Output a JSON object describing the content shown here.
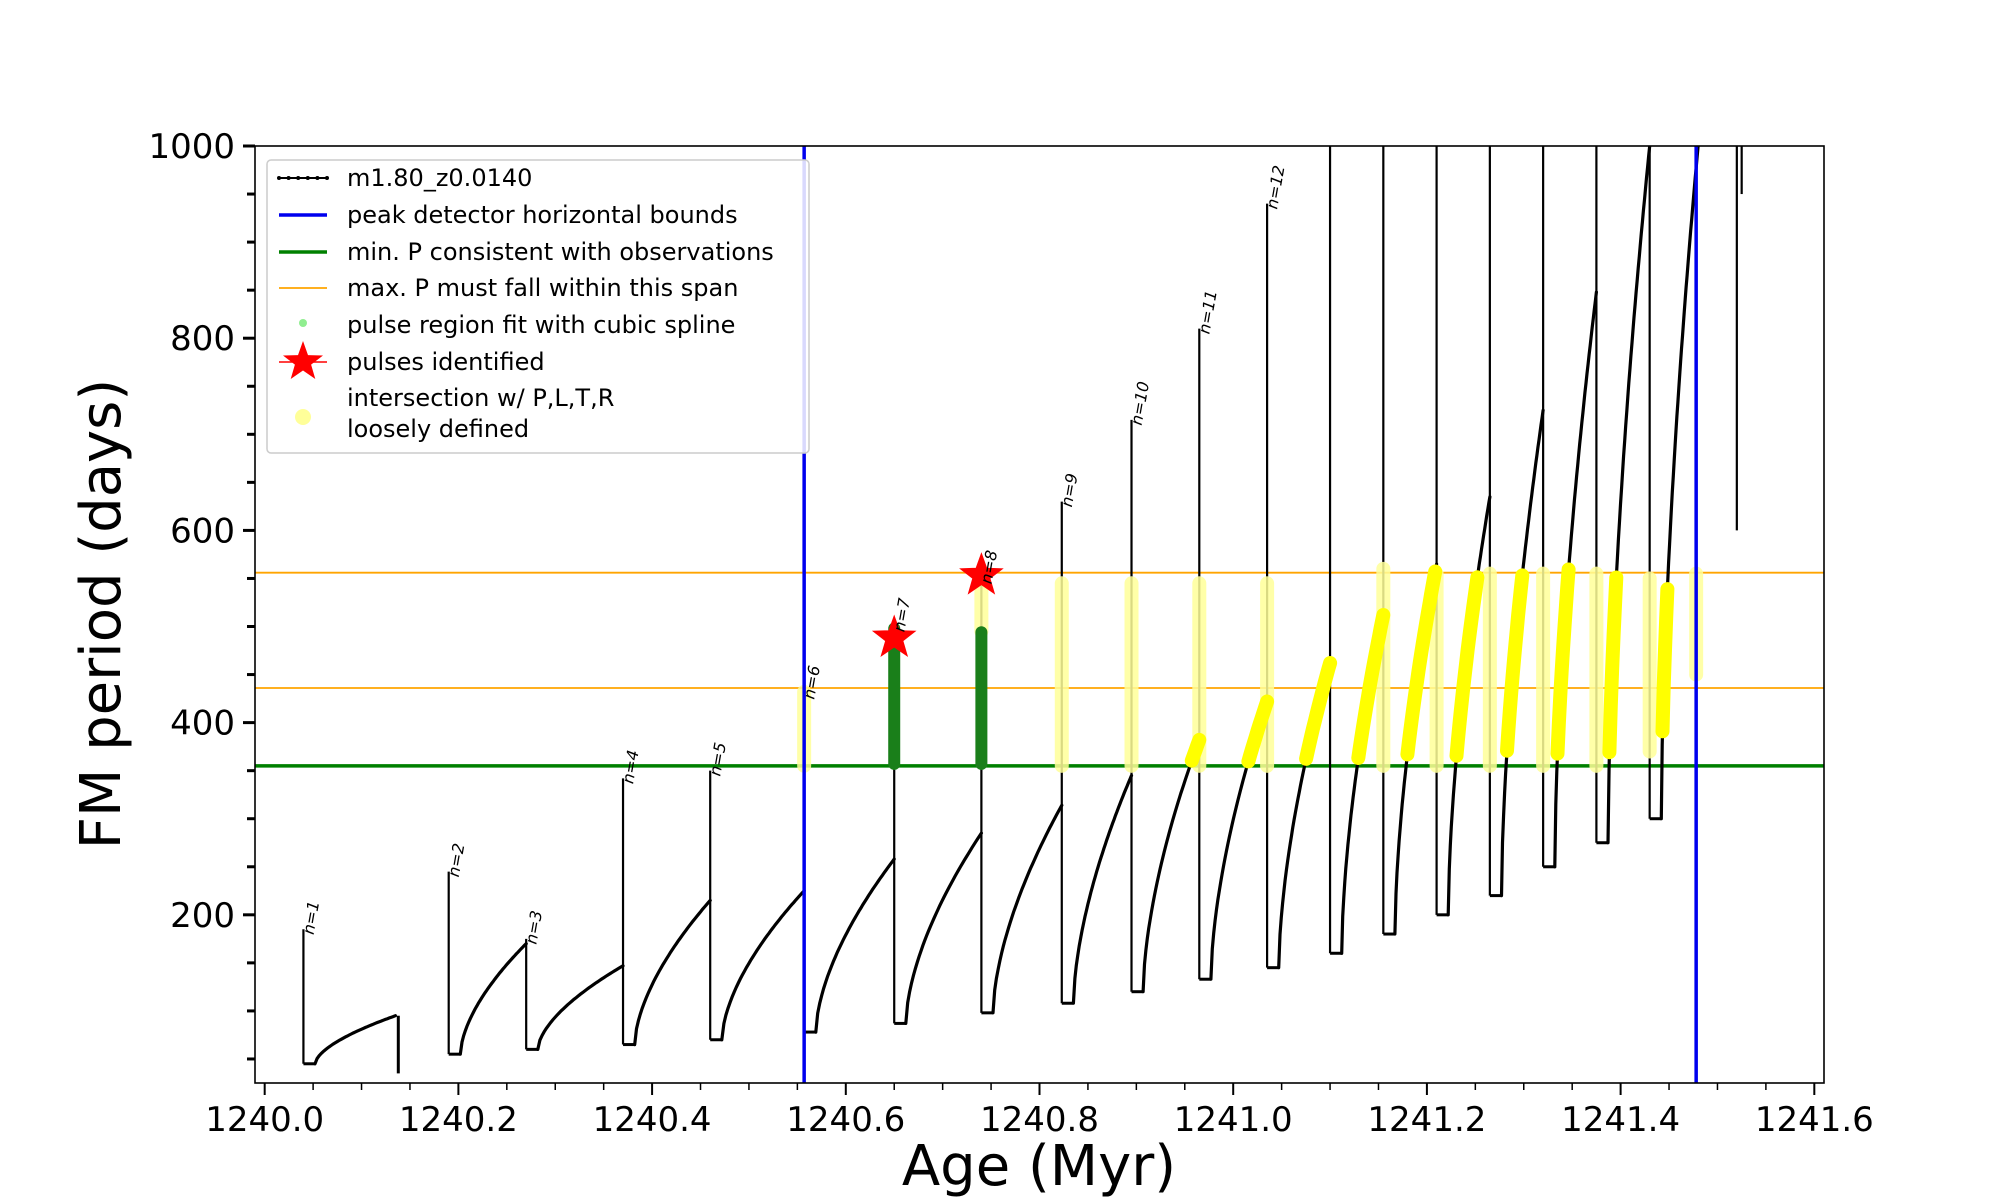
{
  "chart_data": {
    "type": "line",
    "title": "",
    "xlabel": "Age (Myr)",
    "ylabel": "FM period (days)",
    "xlim": [
      1239.99,
      1241.61
    ],
    "ylim": [
      25,
      1000
    ],
    "xticks": [
      1240.0,
      1240.2,
      1240.4,
      1240.6,
      1240.8,
      1241.0,
      1241.2,
      1241.4,
      1241.6
    ],
    "xtick_labels": [
      "1240.0",
      "1240.2",
      "1240.4",
      "1240.6",
      "1240.8",
      "1241.0",
      "1241.2",
      "1241.4",
      "1241.6"
    ],
    "yticks": [
      200,
      400,
      600,
      800,
      1000
    ],
    "ytick_labels": [
      "200",
      "400",
      "600",
      "800",
      "1000"
    ],
    "legend": {
      "position": "top-left",
      "entries": [
        {
          "label": "m1.80_z0.0140",
          "style": "black-line-dots",
          "color": "#000000"
        },
        {
          "label": "peak detector horizontal bounds",
          "style": "line",
          "color": "#0000ee"
        },
        {
          "label": "min. P consistent with observations",
          "style": "line",
          "color": "#008000"
        },
        {
          "label": "max. P must fall within this span",
          "style": "thin-line",
          "color": "#ffa500"
        },
        {
          "label": "pulse region fit with cubic spline",
          "style": "dot",
          "color": "#90ee90"
        },
        {
          "label": "pulses identified",
          "style": "star",
          "color": "#ff0000"
        },
        {
          "label": "intersection w/ P,L,T,R",
          "style": "circle",
          "color": "#ffff99"
        },
        {
          "label": "loosely defined",
          "style": "none",
          "color": ""
        }
      ]
    },
    "reference_lines": {
      "vertical_blue_x": [
        1240.557,
        1241.478
      ],
      "horizontal_green_y": 355,
      "horizontal_orange_y": [
        436,
        556
      ]
    },
    "pulses": [
      {
        "label": "n=1",
        "x": 1240.04,
        "peak": 185,
        "low": 45
      },
      {
        "label": "n=2",
        "x": 1240.19,
        "peak": 245,
        "low": 55
      },
      {
        "label": "n=3",
        "x": 1240.27,
        "peak": 175,
        "low": 60
      },
      {
        "label": "n=4",
        "x": 1240.37,
        "peak": 342,
        "low": 65
      },
      {
        "label": "n=5",
        "x": 1240.46,
        "peak": 350,
        "low": 70
      },
      {
        "label": "n=6",
        "x": 1240.557,
        "peak": 430,
        "low": 78
      },
      {
        "label": "n=7",
        "x": 1240.65,
        "peak": 500,
        "low": 87
      },
      {
        "label": "n=8",
        "x": 1240.74,
        "peak": 550,
        "low": 98
      },
      {
        "label": "n=9",
        "x": 1240.823,
        "peak": 630,
        "low": 108
      },
      {
        "label": "n=10",
        "x": 1240.895,
        "peak": 715,
        "low": 120
      },
      {
        "label": "n=11",
        "x": 1240.965,
        "peak": 810,
        "low": 133
      },
      {
        "label": "n=12",
        "x": 1241.035,
        "peak": 940,
        "low": 145
      }
    ],
    "late_pulses": [
      {
        "x": 1241.1,
        "low": 160
      },
      {
        "x": 1241.155,
        "low": 180
      },
      {
        "x": 1241.21,
        "low": 200
      },
      {
        "x": 1241.265,
        "low": 220
      },
      {
        "x": 1241.32,
        "low": 250
      },
      {
        "x": 1241.375,
        "low": 275
      },
      {
        "x": 1241.43,
        "low": 300
      }
    ],
    "segment_ends": [
      {
        "x": 1240.135,
        "y": 95
      },
      {
        "x": 1240.19,
        "y": 170
      },
      {
        "x": 1240.27,
        "y": 147
      },
      {
        "x": 1240.37,
        "y": 215
      },
      {
        "x": 1240.46,
        "y": 225
      },
      {
        "x": 1240.557,
        "y": 258
      },
      {
        "x": 1240.65,
        "y": 285
      },
      {
        "x": 1240.74,
        "y": 314
      },
      {
        "x": 1240.823,
        "y": 345
      },
      {
        "x": 1240.895,
        "y": 382
      },
      {
        "x": 1240.965,
        "y": 422
      },
      {
        "x": 1241.035,
        "y": 462
      },
      {
        "x": 1241.1,
        "y": 512
      },
      {
        "x": 1241.155,
        "y": 565
      },
      {
        "x": 1241.21,
        "y": 635
      },
      {
        "x": 1241.265,
        "y": 725
      },
      {
        "x": 1241.32,
        "y": 848
      },
      {
        "x": 1241.375,
        "y": 1000
      },
      {
        "x": 1241.43,
        "y": 1000
      }
    ],
    "pulses_identified": [
      {
        "x": 1240.65,
        "y": 488
      },
      {
        "x": 1240.74,
        "y": 553
      }
    ],
    "spline_fit_columns": [
      {
        "x": 1240.65,
        "y_low": 357,
        "y_high": 498
      },
      {
        "x": 1240.74,
        "y_low": 357,
        "y_high": 494
      }
    ],
    "intersection_columns": [
      {
        "x": 1240.557,
        "y_low": 355,
        "y_high": 432
      },
      {
        "x": 1240.74,
        "y_low": 495,
        "y_high": 555
      },
      {
        "x": 1240.823,
        "y_low": 355,
        "y_high": 545
      },
      {
        "x": 1240.895,
        "y_low": 355,
        "y_high": 545
      },
      {
        "x": 1240.965,
        "y_low": 355,
        "y_high": 545
      },
      {
        "x": 1241.035,
        "y_low": 355,
        "y_high": 545
      },
      {
        "x": 1241.155,
        "y_low": 355,
        "y_high": 560
      },
      {
        "x": 1241.21,
        "y_low": 355,
        "y_high": 555
      },
      {
        "x": 1241.265,
        "y_low": 355,
        "y_high": 555
      },
      {
        "x": 1241.32,
        "y_low": 355,
        "y_high": 555
      },
      {
        "x": 1241.375,
        "y_low": 355,
        "y_high": 555
      },
      {
        "x": 1241.43,
        "y_low": 370,
        "y_high": 550
      },
      {
        "x": 1241.478,
        "y_low": 450,
        "y_high": 555
      }
    ]
  }
}
